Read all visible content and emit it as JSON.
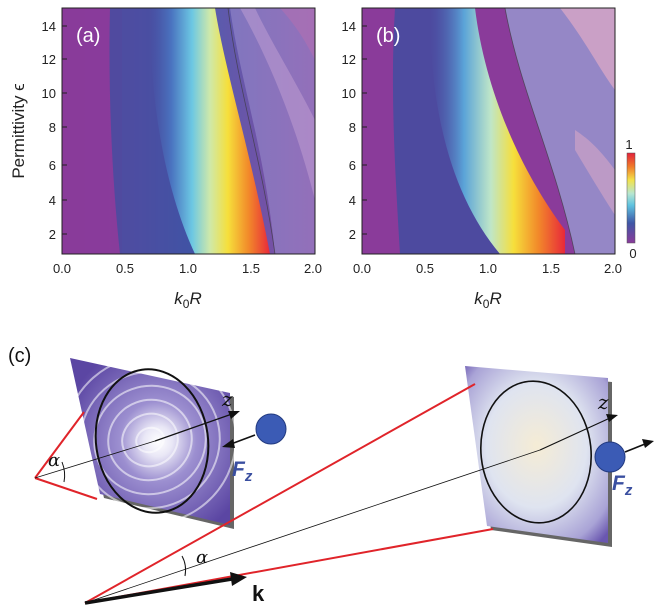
{
  "panels": [
    {
      "label": "(a)",
      "xlabel_k": "k",
      "xlabel_sub": "0",
      "xlabel_R": "R",
      "ylabel": "Permittivity ϵ",
      "xticks": [
        "0.0",
        "0.5",
        "1.0",
        "1.5",
        "2.0"
      ],
      "yticks": [
        "14",
        "12",
        "10",
        "8",
        "6",
        "4",
        "2"
      ]
    },
    {
      "label": "(b)",
      "xlabel_k": "k",
      "xlabel_sub": "0",
      "xlabel_R": "R",
      "xticks": [
        "0.0",
        "0.5",
        "1.0",
        "1.5",
        "2.0"
      ],
      "yticks": [
        "14",
        "12",
        "10",
        "8",
        "6",
        "4",
        "2"
      ]
    }
  ],
  "colorbar": {
    "max_label": "1",
    "min_label": "0"
  },
  "schematic": {
    "label": "(c)",
    "angle_symbol": "α",
    "axis_label": "z",
    "force_label": "F",
    "force_sub": "z",
    "wavevector_label": "k"
  },
  "colors": {
    "beam": "#e0242a",
    "sphere": "#3b5bb5",
    "force_text": "#3a4fa0"
  }
}
